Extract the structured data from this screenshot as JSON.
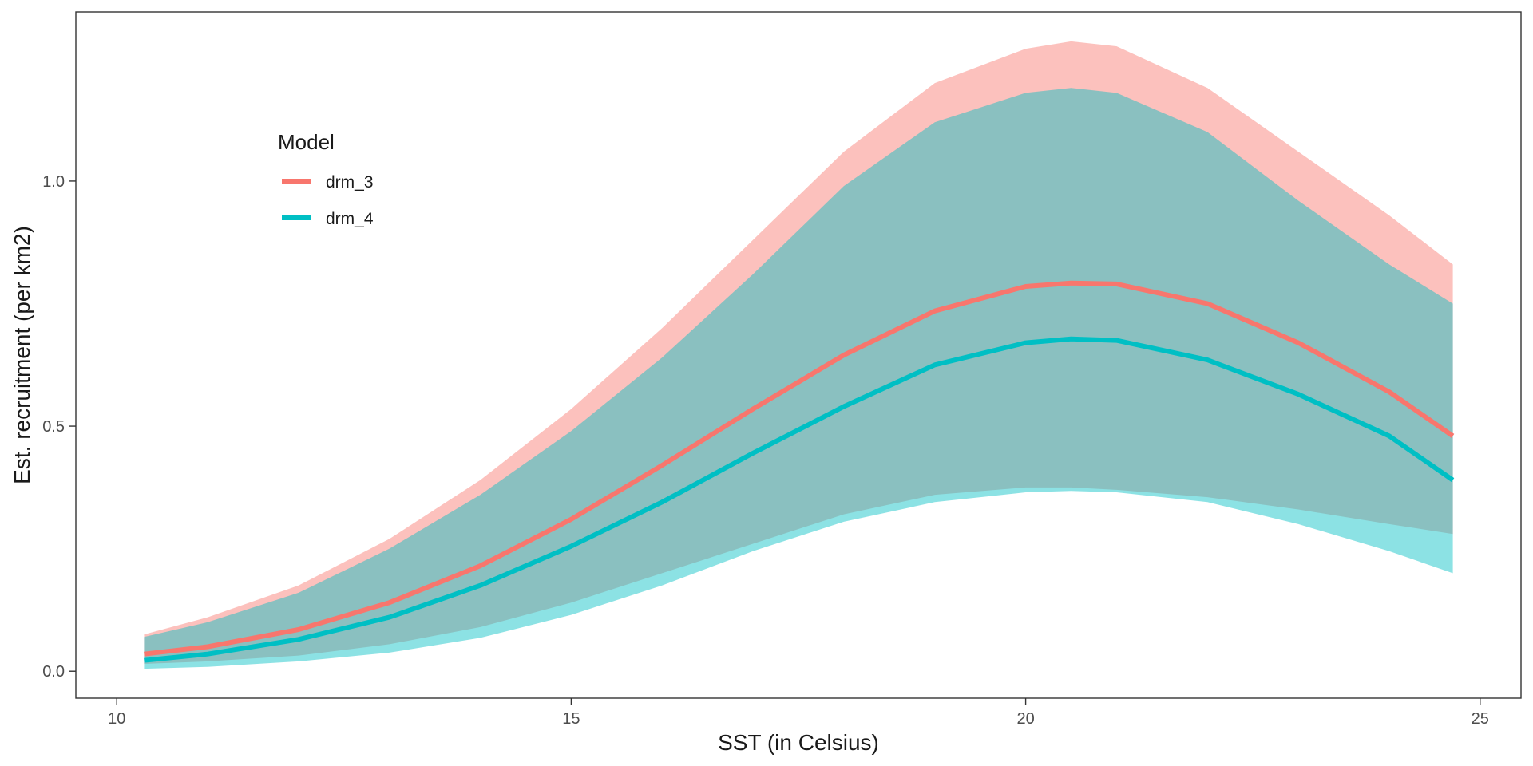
{
  "chart_data": {
    "type": "line",
    "title": "",
    "xlabel": "SST (in Celsius)",
    "ylabel": "Est. recruitment (per km2)",
    "xlim": [
      9.55,
      25.45
    ],
    "ylim": [
      -0.055,
      1.345
    ],
    "x_ticks": [
      10,
      15,
      20,
      25
    ],
    "x_tick_labels": [
      "10",
      "15",
      "20",
      "25"
    ],
    "y_ticks": [
      0.0,
      0.5,
      1.0
    ],
    "y_tick_labels": [
      "0.0",
      "0.5",
      "1.0"
    ],
    "grid": false,
    "legend": {
      "title": "Model",
      "position": "top-left"
    },
    "x": [
      10.3,
      11,
      12,
      13,
      14,
      15,
      16,
      17,
      18,
      19,
      20,
      20.5,
      21,
      22,
      23,
      24,
      24.7
    ],
    "series": [
      {
        "name": "drm_3",
        "color": "#F8766D",
        "values": [
          0.035,
          0.05,
          0.085,
          0.14,
          0.215,
          0.31,
          0.42,
          0.535,
          0.645,
          0.735,
          0.785,
          0.792,
          0.79,
          0.75,
          0.67,
          0.57,
          0.48
        ],
        "lower": [
          0.015,
          0.02,
          0.032,
          0.055,
          0.09,
          0.14,
          0.2,
          0.26,
          0.32,
          0.36,
          0.375,
          0.375,
          0.37,
          0.355,
          0.33,
          0.3,
          0.28
        ],
        "upper": [
          0.075,
          0.11,
          0.175,
          0.27,
          0.39,
          0.535,
          0.7,
          0.88,
          1.06,
          1.2,
          1.27,
          1.285,
          1.275,
          1.19,
          1.06,
          0.93,
          0.83
        ]
      },
      {
        "name": "drm_4",
        "color": "#00BFC4",
        "values": [
          0.022,
          0.035,
          0.065,
          0.11,
          0.175,
          0.255,
          0.345,
          0.445,
          0.54,
          0.625,
          0.67,
          0.678,
          0.675,
          0.635,
          0.565,
          0.48,
          0.39
        ],
        "lower": [
          0.005,
          0.009,
          0.02,
          0.038,
          0.068,
          0.115,
          0.175,
          0.245,
          0.305,
          0.345,
          0.365,
          0.368,
          0.365,
          0.345,
          0.3,
          0.245,
          0.2
        ],
        "upper": [
          0.07,
          0.1,
          0.16,
          0.25,
          0.36,
          0.49,
          0.64,
          0.81,
          0.99,
          1.12,
          1.18,
          1.19,
          1.18,
          1.1,
          0.96,
          0.83,
          0.75
        ]
      }
    ]
  }
}
